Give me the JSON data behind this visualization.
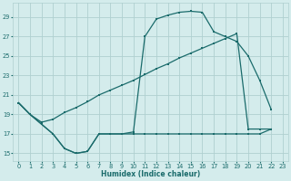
{
  "xlabel": "Humidex (Indice chaleur)",
  "xlim": [
    -0.5,
    23.5
  ],
  "ylim": [
    14.2,
    30.5
  ],
  "yticks": [
    15,
    17,
    19,
    21,
    23,
    25,
    27,
    29
  ],
  "xticks": [
    0,
    1,
    2,
    3,
    4,
    5,
    6,
    7,
    8,
    9,
    10,
    11,
    12,
    13,
    14,
    15,
    16,
    17,
    18,
    19,
    20,
    21,
    22,
    23
  ],
  "bg_color": "#d4ecec",
  "grid_color": "#afd0d0",
  "line_color": "#1a6b6b",
  "line1_x": [
    0,
    1,
    2,
    3,
    4,
    5,
    6,
    7,
    8,
    9,
    10,
    11,
    12,
    13,
    14,
    15,
    16,
    17,
    18,
    19,
    20,
    21,
    22
  ],
  "line1_y": [
    20.2,
    19.0,
    18.0,
    17.0,
    15.5,
    15.0,
    15.2,
    17.0,
    17.0,
    17.0,
    17.0,
    17.0,
    17.0,
    17.0,
    17.0,
    17.0,
    17.0,
    17.0,
    17.0,
    17.0,
    17.0,
    17.0,
    17.5
  ],
  "line2_x": [
    0,
    1,
    2,
    3,
    4,
    5,
    6,
    7,
    8,
    9,
    10,
    11,
    12,
    13,
    14,
    15,
    16,
    17,
    18,
    19,
    20,
    21,
    22
  ],
  "line2_y": [
    20.2,
    19.0,
    18.2,
    18.5,
    19.2,
    19.7,
    20.3,
    21.0,
    21.5,
    22.0,
    22.5,
    23.1,
    23.7,
    24.2,
    24.8,
    25.3,
    25.8,
    26.3,
    26.8,
    27.3,
    17.5,
    17.5,
    17.5
  ],
  "line3_x": [
    0,
    1,
    2,
    3,
    4,
    5,
    6,
    7,
    8,
    9,
    10,
    11,
    12,
    13,
    14,
    15,
    16,
    17,
    18,
    19,
    20,
    21,
    22
  ],
  "line3_y": [
    20.2,
    19.0,
    18.0,
    17.0,
    15.5,
    15.0,
    15.2,
    17.0,
    17.0,
    17.0,
    17.2,
    27.0,
    28.8,
    29.2,
    29.5,
    29.6,
    29.5,
    27.5,
    27.0,
    26.5,
    25.0,
    22.5,
    19.5
  ]
}
